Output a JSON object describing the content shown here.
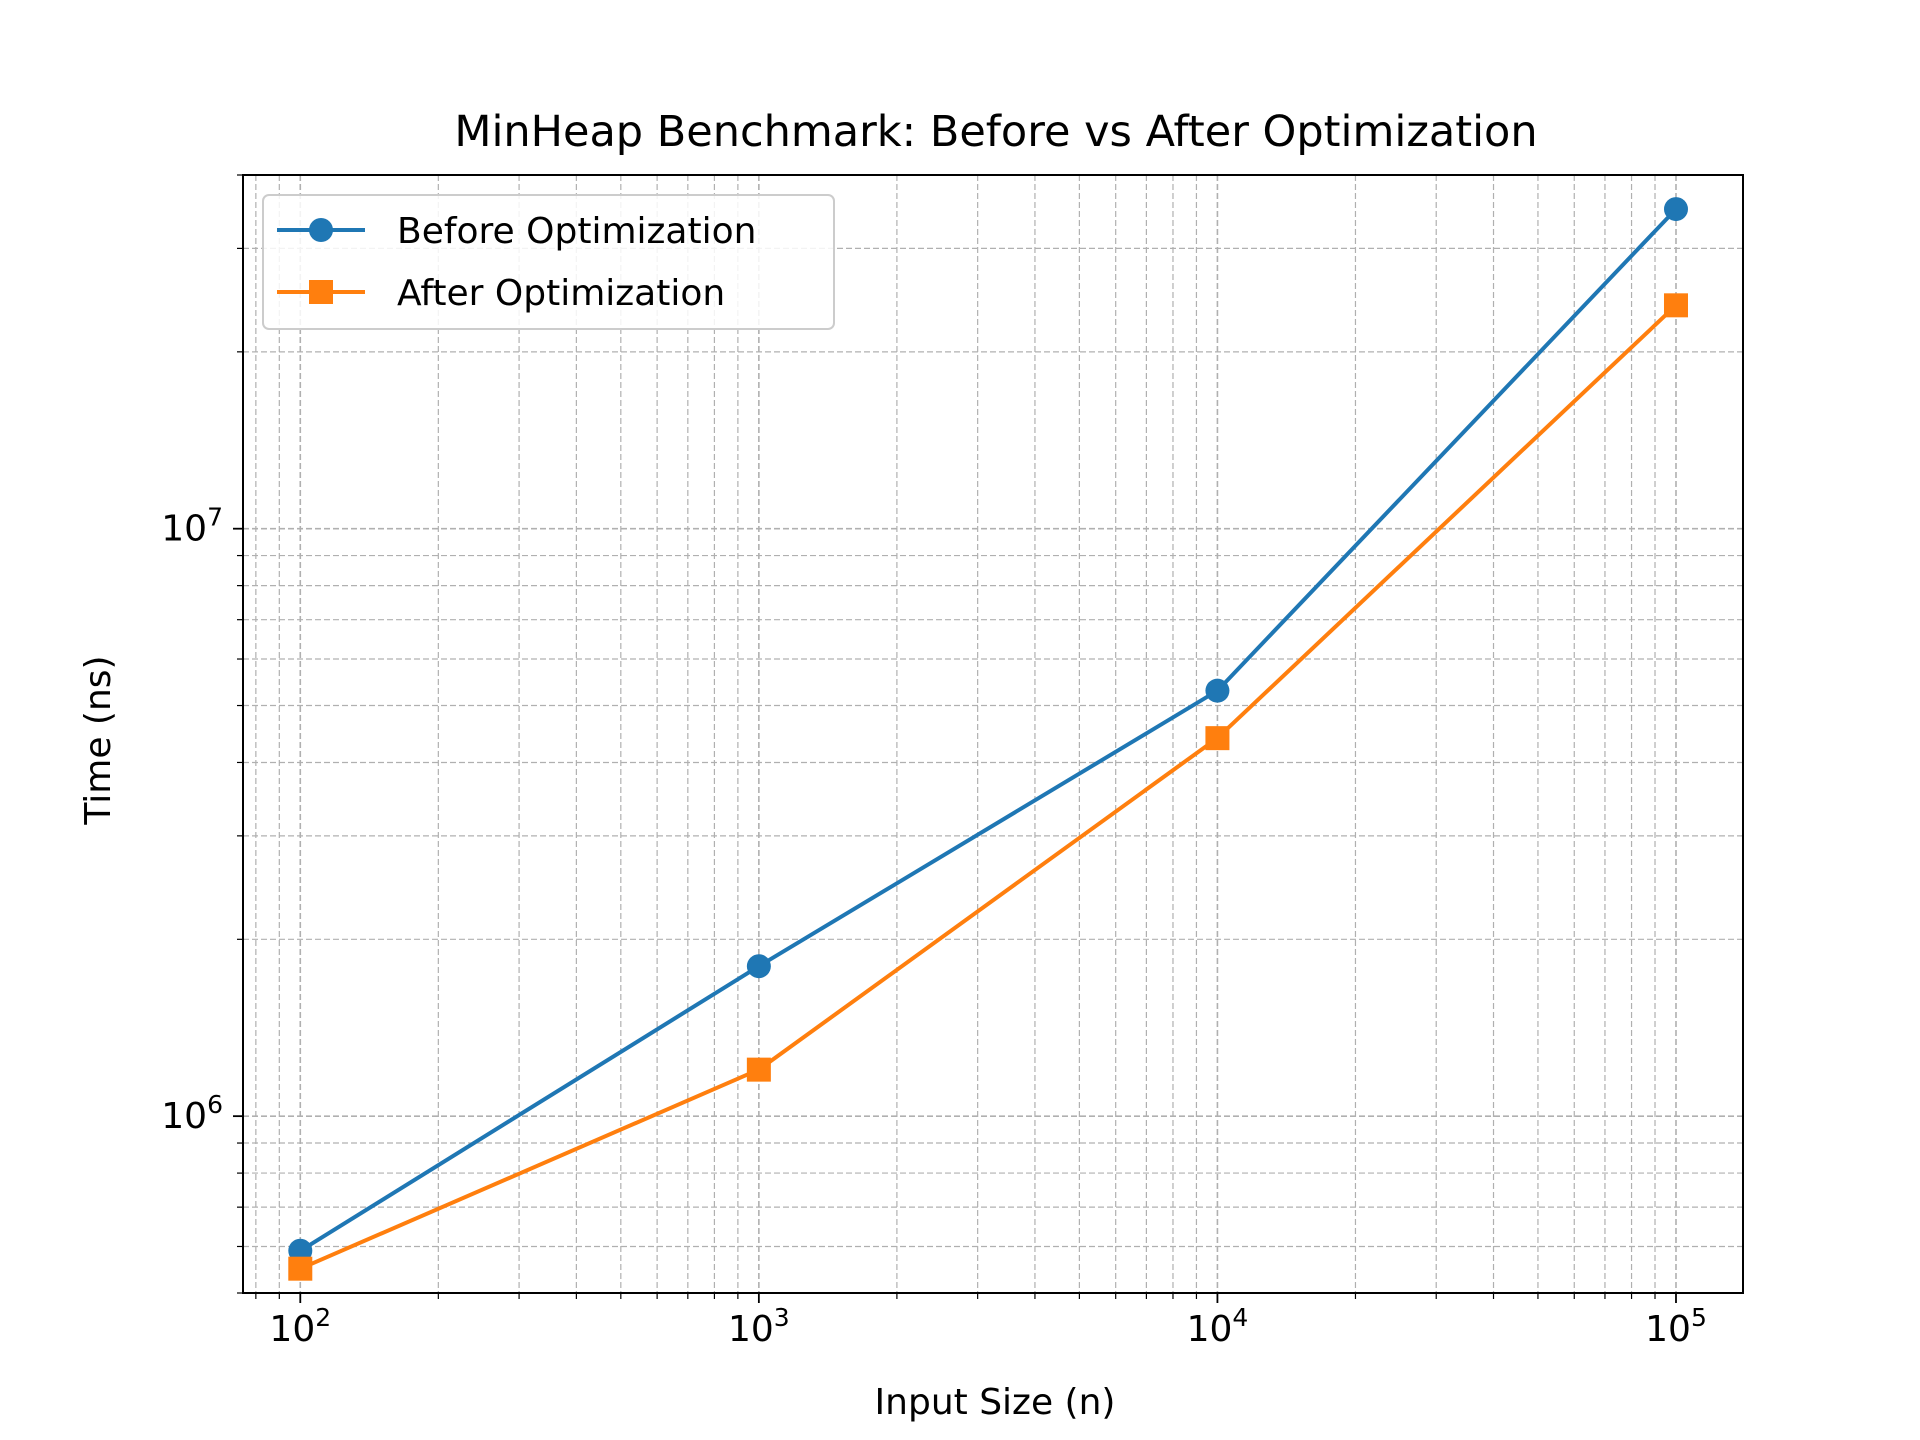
{
  "chart_data": {
    "type": "line",
    "title": "MinHeap Benchmark: Before vs After Optimization",
    "xlabel": "Input Size (n)",
    "ylabel": "Time (ns)",
    "xscale": "log",
    "yscale": "log",
    "xlim": [
      75,
      140000
    ],
    "ylim": [
      500000,
      40000000
    ],
    "x": [
      100,
      1000,
      10000,
      100000
    ],
    "xticks": [
      {
        "value": 100,
        "base": "10",
        "exp": "2"
      },
      {
        "value": 1000,
        "base": "10",
        "exp": "3"
      },
      {
        "value": 10000,
        "base": "10",
        "exp": "4"
      },
      {
        "value": 100000,
        "base": "10",
        "exp": "5"
      }
    ],
    "yticks": [
      {
        "value": 1000000,
        "base": "10",
        "exp": "6"
      },
      {
        "value": 10000000,
        "base": "10",
        "exp": "7"
      }
    ],
    "grid": true,
    "grid_style": "dashed, major and minor",
    "legend_position": "upper-left",
    "series": [
      {
        "name": "Before Optimization",
        "values": [
          590000,
          1800000,
          5300000,
          35000000
        ],
        "color": "#1f77b4",
        "marker": "circle"
      },
      {
        "name": "After Optimization",
        "values": [
          550000,
          1200000,
          4400000,
          24000000
        ],
        "color": "#ff7f0e",
        "marker": "square"
      }
    ]
  }
}
